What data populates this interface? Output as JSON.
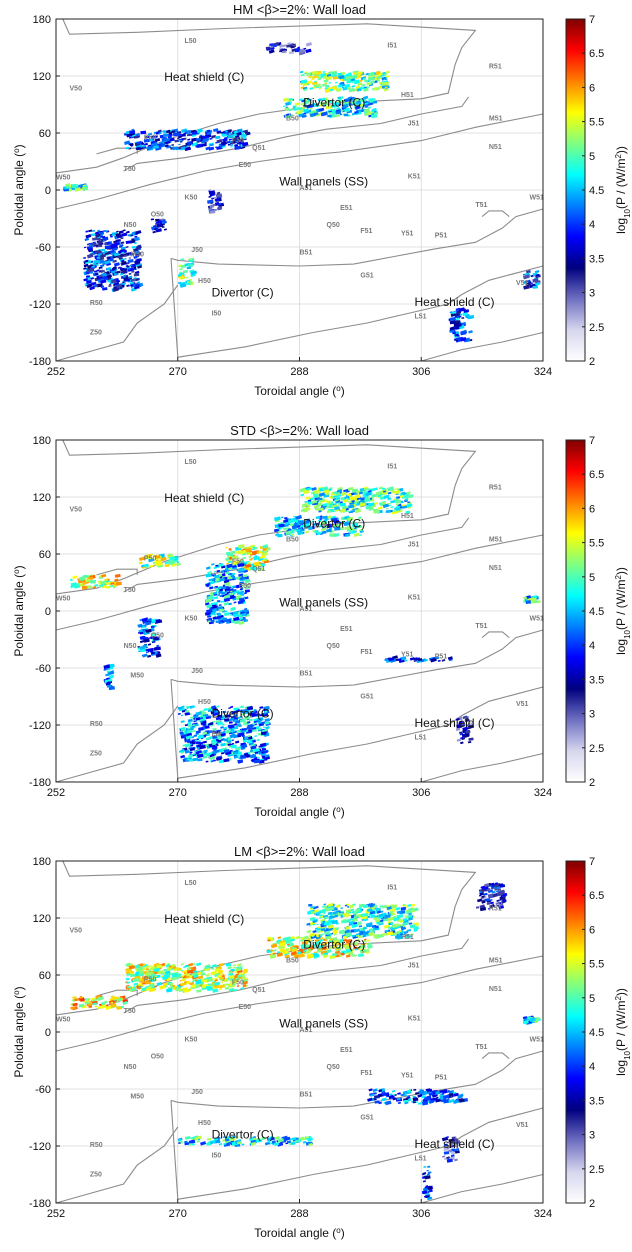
{
  "chart_data": [
    {
      "type": "heatmap",
      "title": "HM <β>=2%: Wall load",
      "xlabel": "Toroidal angle (o)",
      "ylabel": "Poloidal angle (o)",
      "colorbar_label": "log10(P / (W/m2))",
      "xlim": [
        252,
        324
      ],
      "ylim": [
        -180,
        180
      ],
      "xticks": [
        252,
        270,
        288,
        306,
        324
      ],
      "yticks": [
        -180,
        -120,
        -60,
        0,
        60,
        120,
        180
      ],
      "clim": [
        2,
        7
      ],
      "cticks": [
        2,
        2.5,
        3,
        3.5,
        4,
        4.5,
        5,
        5.5,
        6,
        6.5,
        7
      ],
      "grid": true,
      "hotspots": [
        {
          "x": [
            285.5,
            299
          ],
          "y": [
            78,
            98
          ],
          "level": 4.9
        },
        {
          "x": [
            288,
            301
          ],
          "y": [
            105,
            125
          ],
          "level": 5.2
        },
        {
          "x": [
            283,
            289
          ],
          "y": [
            145,
            155
          ],
          "level": 3.5
        },
        {
          "x": [
            262,
            280
          ],
          "y": [
            44,
            64
          ],
          "level": 4.1
        },
        {
          "x": [
            256,
            264
          ],
          "y": [
            -42,
            -104
          ],
          "level": 4.0
        },
        {
          "x": [
            270,
            272
          ],
          "y": [
            -72,
            -100
          ],
          "level": 5.3
        },
        {
          "x": [
            310,
            313
          ],
          "y": [
            -125,
            -158
          ],
          "level": 4.2
        },
        {
          "x": [
            274,
            276
          ],
          "y": [
            2,
            -22
          ],
          "level": 3.5
        },
        {
          "x": [
            321,
            323
          ],
          "y": [
            -85,
            -102
          ],
          "level": 4.0
        },
        {
          "x": [
            253,
            256
          ],
          "y": [
            6,
            1
          ],
          "level": 5.0
        },
        {
          "x": [
            266,
            268
          ],
          "y": [
            -30,
            -44
          ],
          "level": 3.6
        }
      ]
    },
    {
      "type": "heatmap",
      "title": "STD <β>=2%: Wall load",
      "xlabel": "Toroidal angle (o)",
      "ylabel": "Poloidal angle (o)",
      "colorbar_label": "log10(P / (W/m2))",
      "xlim": [
        252,
        324
      ],
      "ylim": [
        -180,
        180
      ],
      "xticks": [
        252,
        270,
        288,
        306,
        324
      ],
      "yticks": [
        -180,
        -120,
        -60,
        0,
        60,
        120,
        180
      ],
      "clim": [
        2,
        7
      ],
      "cticks": [
        2,
        2.5,
        3,
        3.5,
        4,
        4.5,
        5,
        5.5,
        6,
        6.5,
        7
      ],
      "grid": true,
      "hotspots": [
        {
          "x": [
            284,
            297
          ],
          "y": [
            80,
            100
          ],
          "level": 4.8
        },
        {
          "x": [
            288,
            304
          ],
          "y": [
            105,
            130
          ],
          "level": 5.0
        },
        {
          "x": [
            277,
            283
          ],
          "y": [
            44,
            70
          ],
          "level": 5.6
        },
        {
          "x": [
            254,
            261
          ],
          "y": [
            25,
            38
          ],
          "level": 5.6
        },
        {
          "x": [
            264,
            270
          ],
          "y": [
            46,
            60
          ],
          "level": 5.4
        },
        {
          "x": [
            274,
            280
          ],
          "y": [
            -12,
            50
          ],
          "level": 4.6
        },
        {
          "x": [
            264,
            267
          ],
          "y": [
            -8,
            -48
          ],
          "level": 4.3
        },
        {
          "x": [
            259,
            260
          ],
          "y": [
            -55,
            -80
          ],
          "level": 4.4
        },
        {
          "x": [
            270,
            283
          ],
          "y": [
            -100,
            -158
          ],
          "level": 4.5
        },
        {
          "x": [
            311,
            313
          ],
          "y": [
            -110,
            -140
          ],
          "level": 3.5
        },
        {
          "x": [
            321,
            323
          ],
          "y": [
            10,
            16
          ],
          "level": 4.8
        },
        {
          "x": [
            300,
            311
          ],
          "y": [
            -48,
            -52
          ],
          "level": 4.1
        }
      ]
    },
    {
      "type": "heatmap",
      "title": "LM <β>=2%: Wall load",
      "xlabel": "Toroidal angle (o)",
      "ylabel": "Poloidal angle (o)",
      "colorbar_label": "log10(P / (W/m2))",
      "xlim": [
        252,
        324
      ],
      "ylim": [
        -180,
        180
      ],
      "xticks": [
        252,
        270,
        288,
        306,
        324
      ],
      "yticks": [
        -180,
        -120,
        -60,
        0,
        60,
        120,
        180
      ],
      "clim": [
        2,
        7
      ],
      "cticks": [
        2,
        2.5,
        3,
        3.5,
        4,
        4.5,
        5,
        5.5,
        6,
        6.5,
        7
      ],
      "grid": true,
      "hotspots": [
        {
          "x": [
            283,
            298
          ],
          "y": [
            80,
            100
          ],
          "level": 5.6
        },
        {
          "x": [
            289,
            305
          ],
          "y": [
            100,
            135
          ],
          "level": 5.0
        },
        {
          "x": [
            254,
            262
          ],
          "y": [
            26,
            38
          ],
          "level": 5.8
        },
        {
          "x": [
            262,
            280
          ],
          "y": [
            44,
            72
          ],
          "level": 5.6
        },
        {
          "x": [
            314,
            318
          ],
          "y": [
            130,
            157
          ],
          "level": 3.7
        },
        {
          "x": [
            321,
            323
          ],
          "y": [
            10,
            16
          ],
          "level": 4.8
        },
        {
          "x": [
            309,
            311
          ],
          "y": [
            -110,
            -135
          ],
          "level": 3.5
        },
        {
          "x": [
            306,
            307
          ],
          "y": [
            -140,
            -178
          ],
          "level": 4.0
        },
        {
          "x": [
            270,
            290
          ],
          "y": [
            -110,
            -118
          ],
          "level": 4.8
        },
        {
          "x": [
            298,
            312
          ],
          "y": [
            -60,
            -75
          ],
          "level": 4.2
        }
      ]
    }
  ],
  "region_labels": [
    "Heat shield (C)",
    "Divertor (C)",
    "Wall panels (SS)",
    "Divertor (C)",
    "Heat shield (C)"
  ],
  "port_labels": [
    {
      "t": "L50",
      "x": 271,
      "y": 155
    },
    {
      "t": "V50",
      "x": 254,
      "y": 105
    },
    {
      "t": "I51",
      "x": 301,
      "y": 150
    },
    {
      "t": "R51",
      "x": 316,
      "y": 128
    },
    {
      "t": "H51",
      "x": 303,
      "y": 98
    },
    {
      "t": "B50",
      "x": 286,
      "y": 73
    },
    {
      "t": "J51",
      "x": 304,
      "y": 68
    },
    {
      "t": "M51",
      "x": 316,
      "y": 73
    },
    {
      "t": "P50",
      "x": 265,
      "y": 53
    },
    {
      "t": "F50",
      "x": 278,
      "y": 50
    },
    {
      "t": "Q51",
      "x": 281,
      "y": 42
    },
    {
      "t": "N51",
      "x": 316,
      "y": 43
    },
    {
      "t": "T50",
      "x": 262,
      "y": 20
    },
    {
      "t": "E50",
      "x": 279,
      "y": 24
    },
    {
      "t": "W50",
      "x": 252,
      "y": 11
    },
    {
      "t": "A51",
      "x": 288,
      "y": 0
    },
    {
      "t": "K51",
      "x": 304,
      "y": 12
    },
    {
      "t": "K50",
      "x": 271,
      "y": -10
    },
    {
      "t": "O50",
      "x": 266,
      "y": -28
    },
    {
      "t": "W51",
      "x": 322,
      "y": -10
    },
    {
      "t": "N50",
      "x": 262,
      "y": -39
    },
    {
      "t": "E51",
      "x": 294,
      "y": -21
    },
    {
      "t": "T51",
      "x": 314,
      "y": -18
    },
    {
      "t": "Q50",
      "x": 292,
      "y": -39
    },
    {
      "t": "F51",
      "x": 297,
      "y": -45
    },
    {
      "t": "Y51",
      "x": 303,
      "y": -48
    },
    {
      "t": "M50",
      "x": 263,
      "y": -70
    },
    {
      "t": "J50",
      "x": 272,
      "y": -65
    },
    {
      "t": "B51",
      "x": 288,
      "y": -68
    },
    {
      "t": "P51",
      "x": 308,
      "y": -50
    },
    {
      "t": "H50",
      "x": 273,
      "y": -98
    },
    {
      "t": "G51",
      "x": 297,
      "y": -92
    },
    {
      "t": "R50",
      "x": 257,
      "y": -121
    },
    {
      "t": "V51",
      "x": 320,
      "y": -100
    },
    {
      "t": "I50",
      "x": 275,
      "y": -132
    },
    {
      "t": "L51",
      "x": 305,
      "y": -135
    },
    {
      "t": "Z50",
      "x": 257,
      "y": -152
    }
  ],
  "colors": {
    "colormap": [
      "#ffffff",
      "#d6d6ee",
      "#6f6fc2",
      "#00007f",
      "#0000ff",
      "#0080ff",
      "#00ffff",
      "#80ff80",
      "#ffff00",
      "#ff8000",
      "#ff0000",
      "#800000"
    ],
    "boundary": "#8c8c8c",
    "grid": "#d9d9d9"
  }
}
